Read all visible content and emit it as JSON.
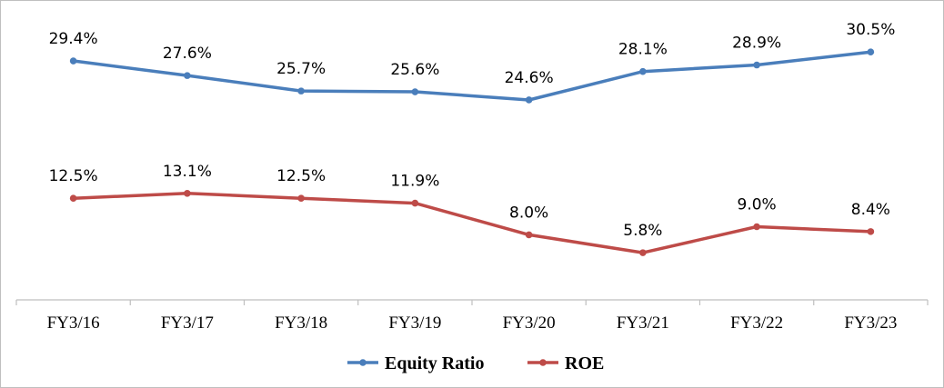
{
  "chart_data": {
    "type": "line",
    "categories": [
      "FY3/16",
      "FY3/17",
      "FY3/18",
      "FY3/19",
      "FY3/20",
      "FY3/21",
      "FY3/22",
      "FY3/23"
    ],
    "series": [
      {
        "name": "Equity Ratio",
        "color": "#4a7ebb",
        "values": [
          29.4,
          27.6,
          25.7,
          25.6,
          24.6,
          28.1,
          28.9,
          30.5
        ],
        "labels": [
          "29.4%",
          "27.6%",
          "25.7%",
          "25.6%",
          "24.6%",
          "28.1%",
          "28.9%",
          "30.5%"
        ]
      },
      {
        "name": "ROE",
        "color": "#be4b48",
        "values": [
          12.5,
          13.1,
          12.5,
          11.9,
          8.0,
          5.8,
          9.0,
          8.4
        ],
        "labels": [
          "12.5%",
          "13.1%",
          "12.5%",
          "11.9%",
          "8.0%",
          "5.8%",
          "9.0%",
          "8.4%"
        ]
      }
    ],
    "ylim": [
      0,
      36
    ],
    "grid": false,
    "legend_position": "bottom",
    "axis_color": "#bfbfbf"
  }
}
